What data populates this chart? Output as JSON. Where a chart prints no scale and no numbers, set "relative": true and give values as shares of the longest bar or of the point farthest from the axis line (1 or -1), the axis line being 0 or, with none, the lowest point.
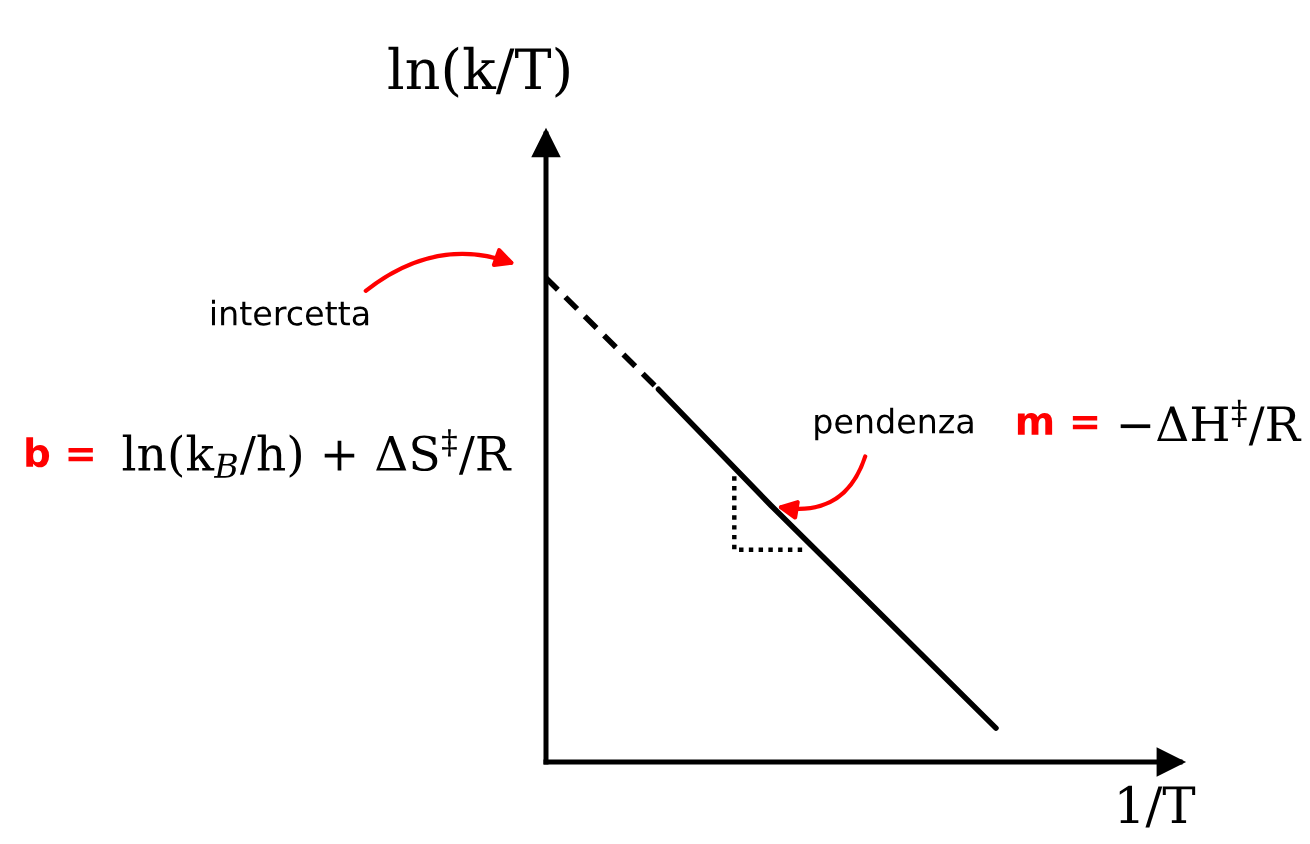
{
  "chart_data": {
    "type": "line",
    "xlabel": "1/T",
    "ylabel": "ln(k/T)",
    "categories": [
      null,
      null,
      null,
      null,
      null
    ],
    "relative": true,
    "series": [
      {
        "color": "#000000",
        "line_style": "dashed",
        "values": [
          1,
          0.77,
          null,
          null,
          null
        ]
      },
      {
        "color": "#000000",
        "line_style": "solid",
        "values": [
          null,
          0.77,
          0.53,
          0.3,
          0.07
        ]
      }
    ],
    "annotations": [
      "intercetta",
      "b =",
      "ln(k$_{B}$/h) + ΔS$^{‡}$/R",
      "pendenza",
      "m =",
      "−ΔH$^{‡}$/R"
    ]
  }
}
